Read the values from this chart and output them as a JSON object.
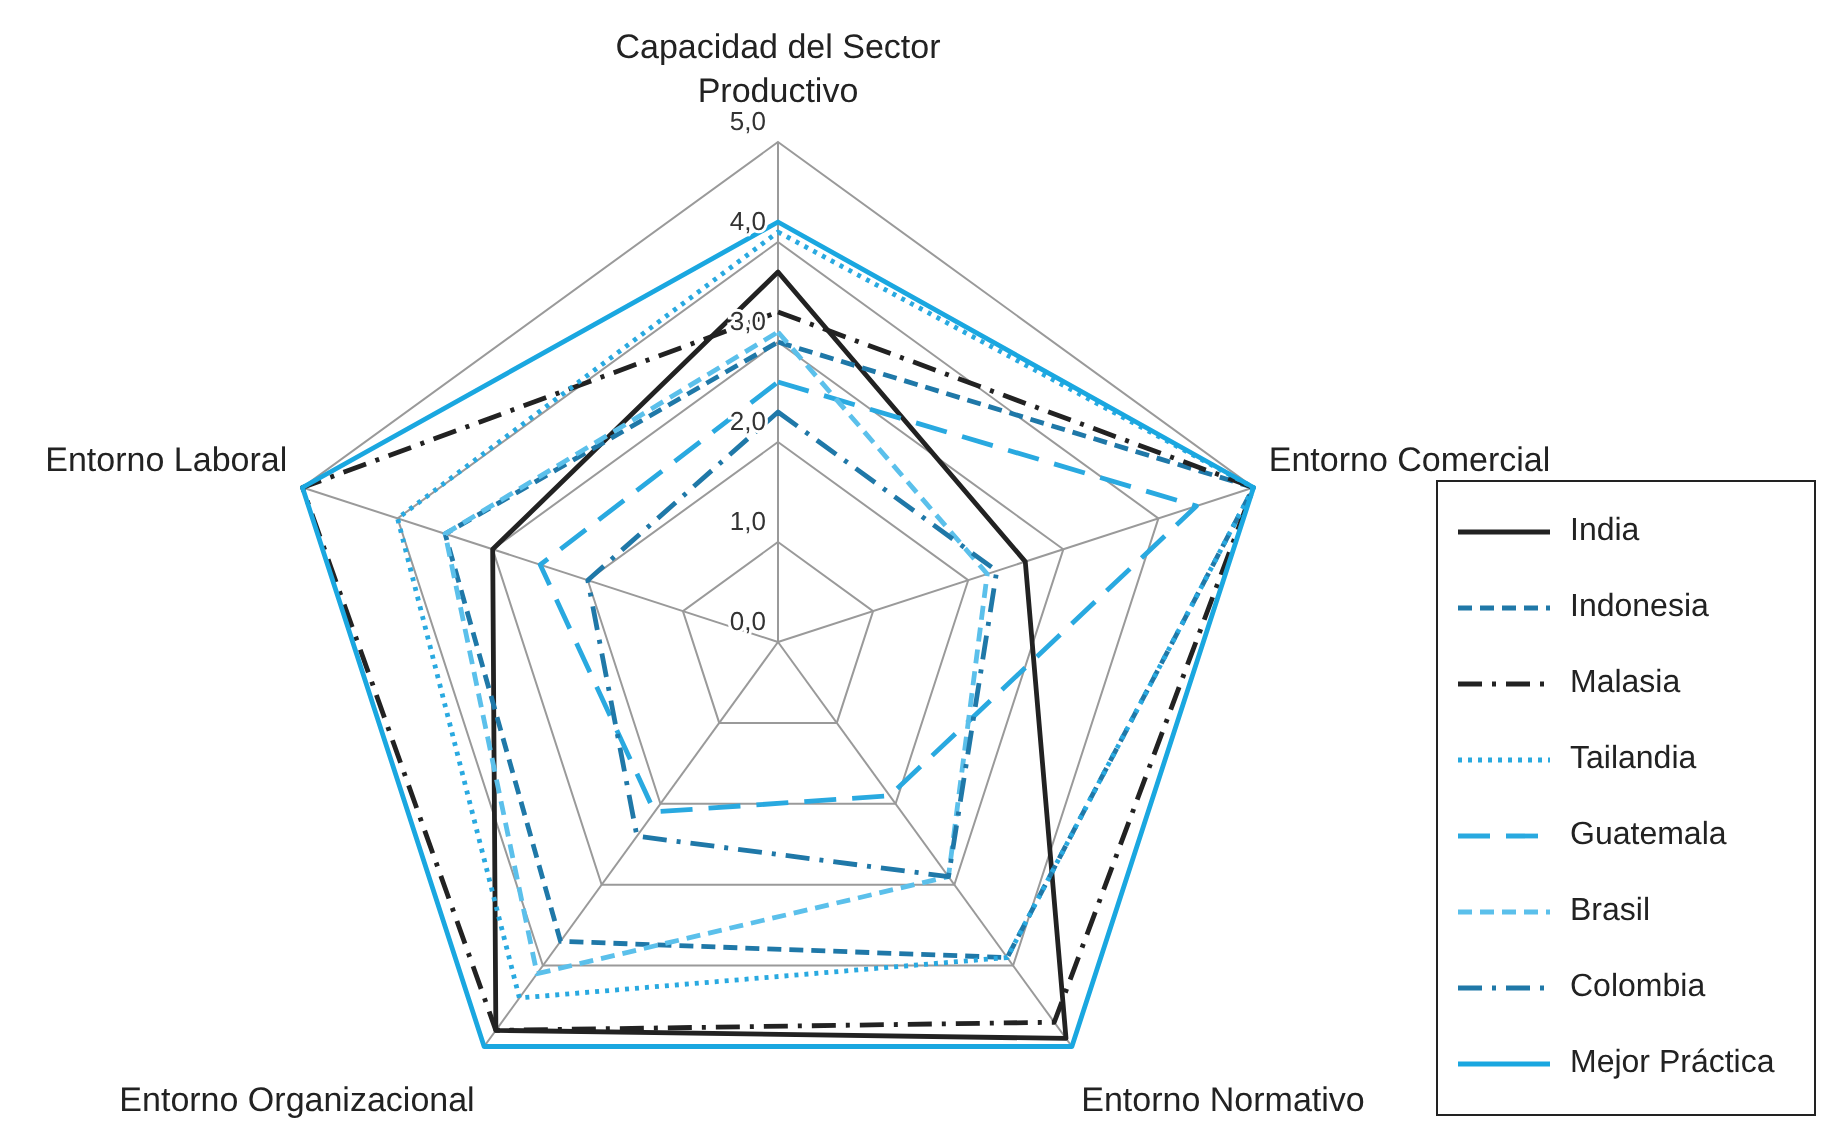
{
  "chart_data": {
    "type": "radar",
    "categories": [
      "Capacidad del Sector Productivo",
      "Entorno Comercial",
      "Entorno Normativo",
      "Entorno Organizacional",
      "Entorno Laboral"
    ],
    "ylim": [
      0,
      5
    ],
    "yticks": [
      {
        "value": 0,
        "label": "0,0"
      },
      {
        "value": 1,
        "label": "1,0"
      },
      {
        "value": 2,
        "label": "2,0"
      },
      {
        "value": 3,
        "label": "3,0"
      },
      {
        "value": 4,
        "label": "4,0"
      },
      {
        "value": 5,
        "label": "5,0"
      }
    ],
    "grid": true,
    "legend": "right",
    "marker": "none",
    "series": [
      {
        "name": "India",
        "color": "#222222",
        "line_style": "solid",
        "values": [
          3.7,
          2.6,
          4.9,
          4.8,
          3.0
        ]
      },
      {
        "name": "Indonesia",
        "color": "#1f78a8",
        "line_style": "dashed",
        "values": [
          3.0,
          5.0,
          3.9,
          3.7,
          3.5
        ]
      },
      {
        "name": "Malasia",
        "color": "#222222",
        "line_style": "dashdot",
        "values": [
          3.3,
          5.0,
          4.7,
          4.8,
          5.0
        ]
      },
      {
        "name": "Tailandia",
        "color": "#29a9e0",
        "line_style": "dotted",
        "values": [
          4.1,
          5.0,
          3.9,
          4.4,
          4.0
        ]
      },
      {
        "name": "Guatemala",
        "color": "#29a9e0",
        "line_style": "longdash",
        "values": [
          2.6,
          4.4,
          1.9,
          2.1,
          2.5
        ]
      },
      {
        "name": "Brasil",
        "color": "#5bc0eb",
        "line_style": "dashed",
        "values": [
          3.1,
          2.2,
          2.9,
          4.1,
          3.5
        ]
      },
      {
        "name": "Colombia",
        "color": "#1f78a8",
        "line_style": "dashdot",
        "values": [
          2.3,
          2.3,
          2.9,
          2.4,
          2.0
        ]
      },
      {
        "name": "Mejor Práctica",
        "color": "#1aa7e0",
        "line_style": "solid",
        "values": [
          4.2,
          5.0,
          5.0,
          5.0,
          5.0
        ]
      }
    ]
  }
}
